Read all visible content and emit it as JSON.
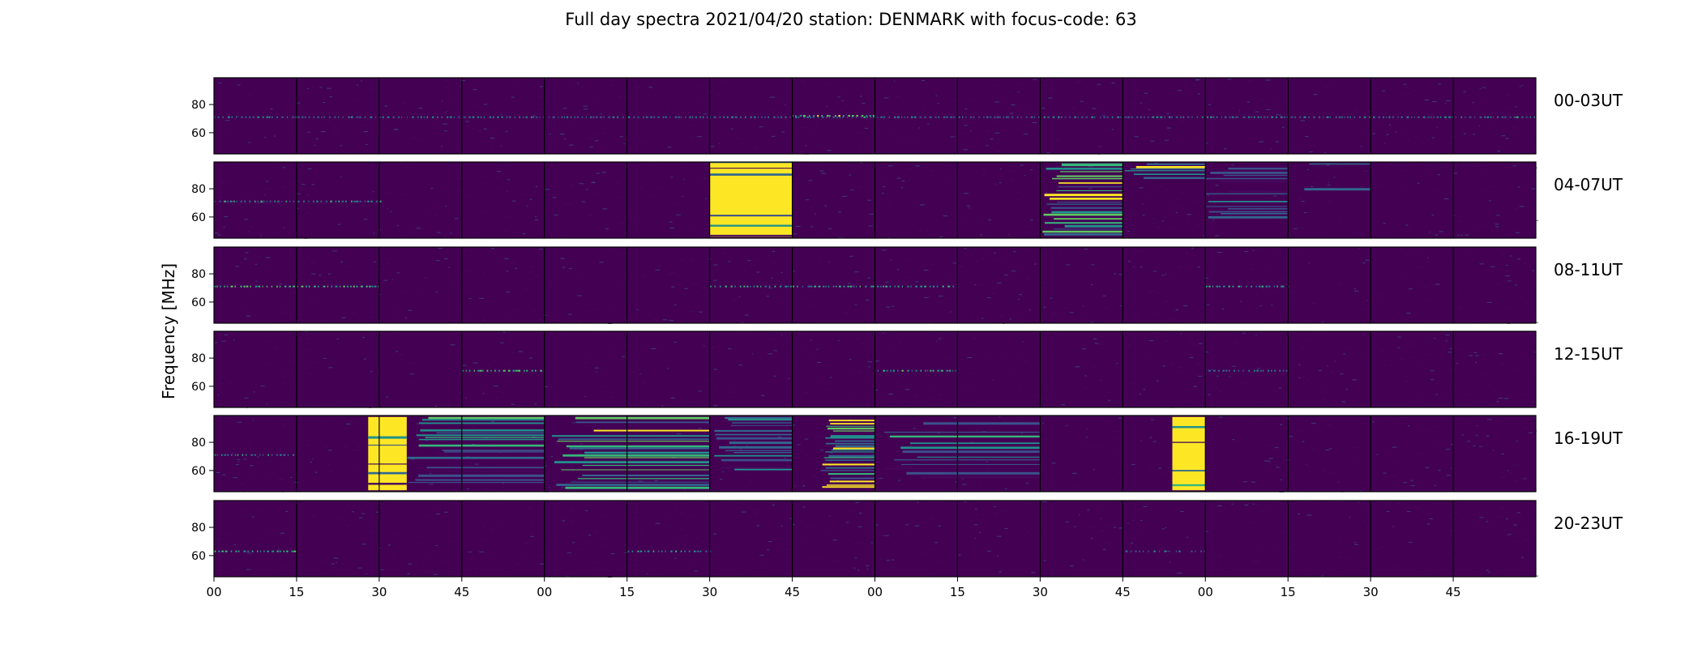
{
  "chart_data": {
    "type": "heatmap",
    "title": "Full day spectra 2021/04/20 station: DENMARK with focus-code: 63",
    "ylabel": "Frequency [MHz]",
    "xlabel": "",
    "y_tick_labels": [
      "80",
      "60"
    ],
    "y_tick_values": [
      80,
      60
    ],
    "ylim": [
      45,
      99
    ],
    "x_tick_labels": [
      "00",
      "15",
      "30",
      "45",
      "00",
      "15",
      "30",
      "45",
      "00",
      "15",
      "30",
      "45",
      "00",
      "15",
      "30",
      "45"
    ],
    "x_tick_minutes": [
      0,
      15,
      30,
      45,
      60,
      75,
      90,
      105,
      120,
      135,
      150,
      165,
      180,
      195,
      210,
      225
    ],
    "xlim_minutes": [
      0,
      240
    ],
    "segment_minutes": 15,
    "colormap": "viridis",
    "colors": {
      "background": "#440154",
      "low": "#46085c",
      "mid": "#31688e",
      "teal": "#21918c",
      "green": "#5ec962",
      "high": "#fde725"
    },
    "rows": [
      {
        "label": "00-03UT",
        "bursts": [],
        "steady_lines": [
          {
            "start": 0,
            "end": 240,
            "freq": 71,
            "strength": 0.45
          },
          {
            "start": 105,
            "end": 120,
            "freq": 72,
            "strength": 0.8
          }
        ]
      },
      {
        "label": "04-07UT",
        "bursts": [
          {
            "start": 90,
            "end": 105,
            "freq_min": 46,
            "freq_max": 99,
            "intensity": 0.95
          },
          {
            "start": 150,
            "end": 165,
            "freq_min": 46,
            "freq_max": 98,
            "intensity": 0.7
          },
          {
            "start": 165,
            "end": 180,
            "freq_min": 86,
            "freq_max": 98,
            "intensity": 0.8
          },
          {
            "start": 180,
            "end": 195,
            "freq_min": 60,
            "freq_max": 95,
            "intensity": 0.4
          },
          {
            "start": 195,
            "end": 210,
            "freq_min": 80,
            "freq_max": 98,
            "intensity": 0.3
          }
        ],
        "steady_lines": [
          {
            "start": 0,
            "end": 30,
            "freq": 71,
            "strength": 0.5
          }
        ]
      },
      {
        "label": "08-11UT",
        "bursts": [],
        "steady_lines": [
          {
            "start": 0,
            "end": 30,
            "freq": 71,
            "strength": 0.7
          },
          {
            "start": 90,
            "end": 135,
            "freq": 71,
            "strength": 0.6
          },
          {
            "start": 180,
            "end": 195,
            "freq": 71,
            "strength": 0.6
          }
        ]
      },
      {
        "label": "12-15UT",
        "bursts": [],
        "steady_lines": [
          {
            "start": 45,
            "end": 60,
            "freq": 71,
            "strength": 0.7
          },
          {
            "start": 120,
            "end": 135,
            "freq": 71,
            "strength": 0.6
          },
          {
            "start": 180,
            "end": 195,
            "freq": 71,
            "strength": 0.4
          }
        ]
      },
      {
        "label": "16-19UT",
        "bursts": [
          {
            "start": 28,
            "end": 35,
            "freq_min": 46,
            "freq_max": 98,
            "intensity": 0.9
          },
          {
            "start": 35,
            "end": 60,
            "freq_min": 50,
            "freq_max": 98,
            "intensity": 0.45
          },
          {
            "start": 60,
            "end": 90,
            "freq_min": 48,
            "freq_max": 98,
            "intensity": 0.55
          },
          {
            "start": 90,
            "end": 105,
            "freq_min": 60,
            "freq_max": 98,
            "intensity": 0.4
          },
          {
            "start": 110,
            "end": 120,
            "freq_min": 48,
            "freq_max": 96,
            "intensity": 0.75
          },
          {
            "start": 120,
            "end": 150,
            "freq_min": 55,
            "freq_max": 96,
            "intensity": 0.35
          },
          {
            "start": 174,
            "end": 180,
            "freq_min": 46,
            "freq_max": 98,
            "intensity": 0.9
          }
        ],
        "steady_lines": [
          {
            "start": 0,
            "end": 15,
            "freq": 71,
            "strength": 0.5
          }
        ]
      },
      {
        "label": "20-23UT",
        "bursts": [],
        "steady_lines": [
          {
            "start": 0,
            "end": 15,
            "freq": 63,
            "strength": 0.6
          },
          {
            "start": 75,
            "end": 90,
            "freq": 63,
            "strength": 0.5
          },
          {
            "start": 165,
            "end": 180,
            "freq": 63,
            "strength": 0.35
          }
        ]
      }
    ]
  }
}
